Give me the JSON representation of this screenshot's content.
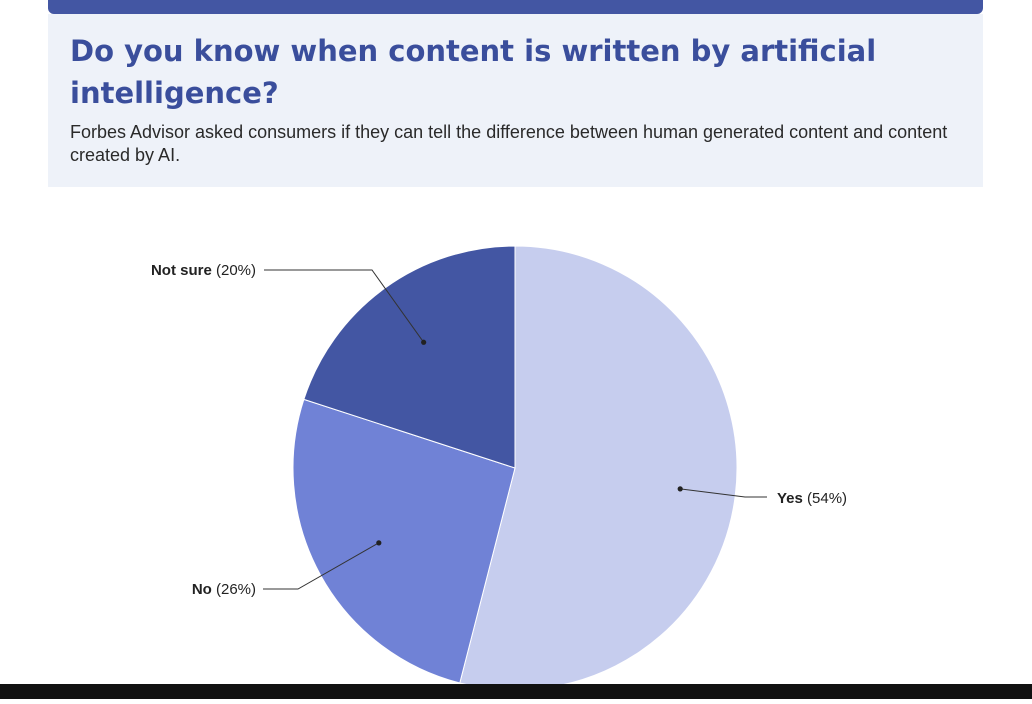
{
  "header": {
    "title": "Do you know when content is written by artificial intelligence?",
    "subtitle": "Forbes Advisor asked consumers if they can tell the difference between human generated content and content created by AI."
  },
  "colors": {
    "accent": "#4356a3",
    "header_bg": "#eef2f9",
    "yes": "#c6cdee",
    "no": "#7082d6",
    "not_sure": "#4356a3"
  },
  "chart_data": {
    "type": "pie",
    "title": "Do you know when content is written by artificial intelligence?",
    "slices": [
      {
        "label": "Yes",
        "value": 54,
        "value_text": "(54%)",
        "color": "#c6cdee"
      },
      {
        "label": "No",
        "value": 26,
        "value_text": "(26%)",
        "color": "#7082d6"
      },
      {
        "label": "Not sure",
        "value": 20,
        "value_text": "(20%)",
        "color": "#4356a3"
      }
    ]
  }
}
